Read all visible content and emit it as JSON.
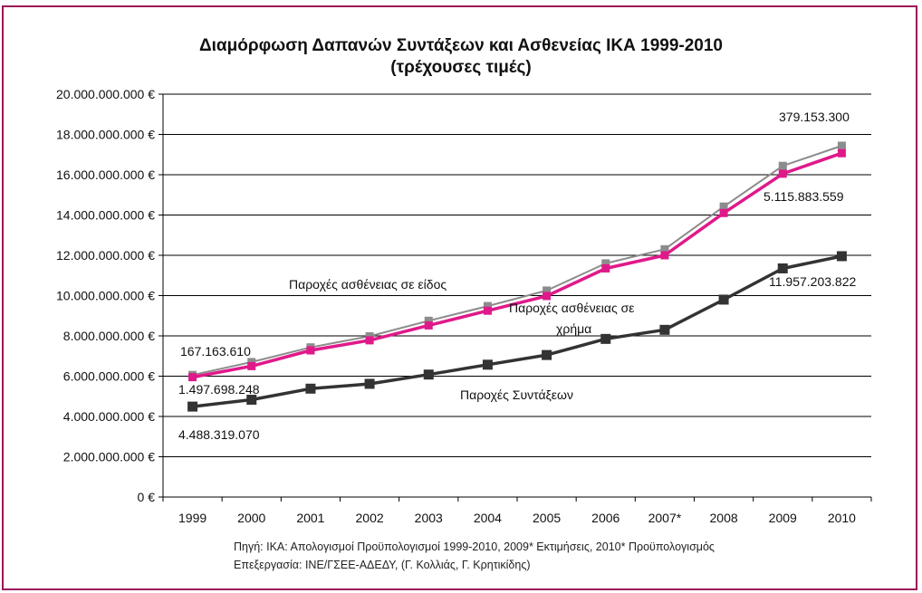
{
  "chart_data": {
    "type": "line",
    "title": "Διαμόρφωση Δαπανών Συντάξεων και Ασθενείας ΙΚΑ 1999-2010",
    "subtitle": "(τρέχουσες τιμές)",
    "categories": [
      "1999",
      "2000",
      "2001",
      "2002",
      "2003",
      "2004",
      "2005",
      "2006",
      "2007*",
      "2008",
      "2009",
      "2010"
    ],
    "ylim": [
      0,
      20000000000
    ],
    "yticks": [
      "0 €",
      "2.000.000.000 €",
      "4.000.000.000 €",
      "6.000.000.000 €",
      "8.000.000.000 €",
      "10.000.000.000 €",
      "12.000.000.000 €",
      "14.000.000.000 €",
      "16.000.000.000 €",
      "18.000.000.000 €",
      "20.000.000.000 €"
    ],
    "grid": true,
    "series": [
      {
        "key": "total",
        "color": "#8c8c8c",
        "values": [
          6060000000,
          6700000000,
          7430000000,
          7980000000,
          8750000000,
          9480000000,
          10250000000,
          11600000000,
          12300000000,
          14420000000,
          16440000000,
          17440000000
        ]
      },
      {
        "key": "sickness",
        "color": "#e0198a",
        "values": [
          5950000000,
          6500000000,
          7280000000,
          7780000000,
          8520000000,
          9250000000,
          9980000000,
          11350000000,
          12000000000,
          14100000000,
          16050000000,
          17070000000
        ]
      },
      {
        "key": "pensions",
        "color": "#333333",
        "values": [
          4490000000,
          4830000000,
          5380000000,
          5620000000,
          6080000000,
          6570000000,
          7050000000,
          7850000000,
          8300000000,
          9800000000,
          11350000000,
          11957203822
        ]
      }
    ],
    "annotations": {
      "kind_label": "Παροχές ασθένειας σε είδος",
      "cash_label_line1": "Παροχές ασθένειας σε",
      "cash_label_line2": "χρήμα",
      "pensions_label": "Παροχές Συντάξεων",
      "val_cash_1999": "167.163.610",
      "val_kind_1999": "1.497.698.248",
      "val_pensions_1999": "4.488.319.070",
      "val_cash_2010": "379.153.300",
      "val_kind_2010": "5.115.883.559",
      "val_pensions_2010": "11.957.203.822"
    }
  },
  "source_line1": "Πηγή: ΙΚΑ: Απολογισμοί Προϋπολογισμοί 1999-2010, 2009* Εκτιμήσεις, 2010* Προϋπολογισμός",
  "source_line2": "Επεξεργασία: ΙΝΕ/ΓΣΕΕ-ΑΔΕΔΥ, (Γ. Κολλιάς, Γ. Κρητικίδης)"
}
